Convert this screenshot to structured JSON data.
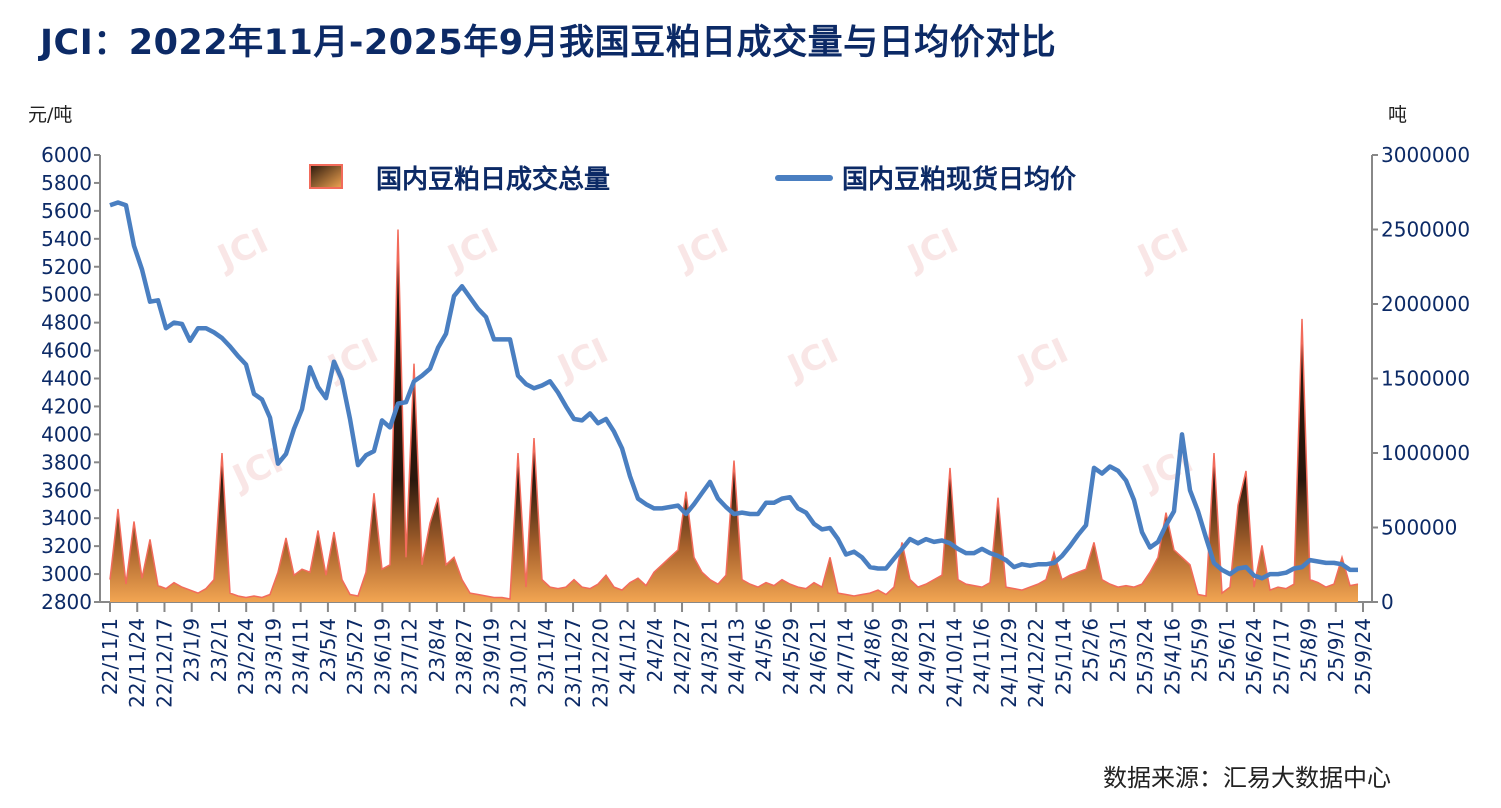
{
  "title": "JCI：2022年11月-2025年9月我国豆粕日成交量与日均价对比",
  "source": "数据来源：汇易大数据中心",
  "watermark": "JCI",
  "colors": {
    "price": "#4a7fc1",
    "volume_stroke": "#f26b5b",
    "volume_dark": "#2a170c",
    "volume_light": "#f2a552",
    "text": "#0c2a66"
  },
  "chart_data": {
    "type": "area+line",
    "title": "JCI：2022年11月-2025年9月我国豆粕日成交量与日均价对比",
    "y_left": {
      "label": "元/吨",
      "range": [
        2800,
        6000
      ],
      "ticks": [
        "6000",
        "5800",
        "5600",
        "5400",
        "5200",
        "5000",
        "4800",
        "4600",
        "4400",
        "4200",
        "4000",
        "3800",
        "3600",
        "3400",
        "3200",
        "3000",
        "2800"
      ]
    },
    "y_right": {
      "label": "吨",
      "range": [
        0,
        3000000
      ],
      "ticks": [
        "3000000",
        "2500000",
        "2000000",
        "1500000",
        "1000000",
        "500000",
        "0"
      ]
    },
    "x_ticks": [
      "22/11/1",
      "22/11/24",
      "22/12/17",
      "23/1/9",
      "23/2/1",
      "23/2/24",
      "23/3/19",
      "23/4/11",
      "23/5/4",
      "23/5/27",
      "23/6/19",
      "23/7/12",
      "23/8/4",
      "23/8/27",
      "23/9/19",
      "23/10/12",
      "23/11/4",
      "23/11/27",
      "23/12/20",
      "24/1/12",
      "24/2/4",
      "24/2/27",
      "24/3/21",
      "24/4/13",
      "24/5/6",
      "24/5/29",
      "24/6/21",
      "24/7/14",
      "24/8/6",
      "24/8/29",
      "24/9/21",
      "24/10/14",
      "24/11/6",
      "24/11/29",
      "24/12/22",
      "25/1/14",
      "25/2/6",
      "25/3/1",
      "25/3/24",
      "25/4/16",
      "25/5/9",
      "25/6/1",
      "25/6/24",
      "25/7/17",
      "25/8/9",
      "25/9/1",
      "25/9/24"
    ],
    "legend_position": "top",
    "series": [
      {
        "name": "国内豆粕日成交总量",
        "axis": "right",
        "kind": "area",
        "values": [
          150000,
          624000,
          120000,
          540000,
          160000,
          420000,
          110000,
          90000,
          130000,
          100000,
          80000,
          60000,
          90000,
          150000,
          1000000,
          60000,
          40000,
          30000,
          40000,
          30000,
          50000,
          200000,
          430000,
          180000,
          220000,
          200000,
          480000,
          180000,
          470000,
          150000,
          50000,
          40000,
          200000,
          730000,
          220000,
          250000,
          2500000,
          300000,
          1600000,
          250000,
          530000,
          700000,
          250000,
          300000,
          150000,
          60000,
          50000,
          40000,
          30000,
          30000,
          20000,
          1000000,
          100000,
          1100000,
          150000,
          100000,
          90000,
          100000,
          150000,
          100000,
          90000,
          120000,
          180000,
          100000,
          80000,
          130000,
          160000,
          110000,
          200000,
          250000,
          300000,
          350000,
          740000,
          300000,
          200000,
          150000,
          120000,
          180000,
          950000,
          150000,
          120000,
          100000,
          130000,
          110000,
          150000,
          120000,
          100000,
          90000,
          130000,
          100000,
          300000,
          60000,
          50000,
          40000,
          50000,
          60000,
          80000,
          50000,
          100000,
          400000,
          150000,
          100000,
          120000,
          150000,
          180000,
          900000,
          150000,
          120000,
          110000,
          100000,
          130000,
          700000,
          100000,
          90000,
          80000,
          100000,
          120000,
          150000,
          330000,
          150000,
          180000,
          200000,
          220000,
          400000,
          150000,
          120000,
          100000,
          110000,
          100000,
          120000,
          200000,
          300000,
          600000,
          350000,
          300000,
          250000,
          50000,
          40000,
          1000000,
          60000,
          100000,
          650000,
          880000,
          100000,
          380000,
          80000,
          100000,
          90000,
          120000,
          1900000,
          150000,
          130000,
          100000,
          120000,
          300000,
          110000,
          120000
        ]
      },
      {
        "name": "国内豆粕现货日均价",
        "axis": "left",
        "kind": "line",
        "values": [
          5640,
          5660,
          5640,
          5350,
          5180,
          4950,
          4960,
          4760,
          4800,
          4790,
          4670,
          4760,
          4760,
          4730,
          4690,
          4630,
          4560,
          4500,
          4290,
          4250,
          4120,
          3790,
          3860,
          4040,
          4180,
          4480,
          4340,
          4260,
          4520,
          4390,
          4110,
          3780,
          3850,
          3880,
          4100,
          4050,
          4220,
          4230,
          4380,
          4420,
          4470,
          4620,
          4720,
          4990,
          5060,
          4980,
          4900,
          4840,
          4680,
          4680,
          4680,
          4420,
          4360,
          4330,
          4350,
          4380,
          4300,
          4200,
          4110,
          4100,
          4150,
          4080,
          4110,
          4020,
          3900,
          3700,
          3540,
          3500,
          3470,
          3470,
          3480,
          3490,
          3430,
          3500,
          3580,
          3660,
          3540,
          3480,
          3430,
          3440,
          3430,
          3430,
          3510,
          3510,
          3540,
          3550,
          3470,
          3440,
          3360,
          3320,
          3330,
          3250,
          3140,
          3160,
          3120,
          3050,
          3040,
          3040,
          3110,
          3180,
          3250,
          3220,
          3250,
          3230,
          3240,
          3220,
          3180,
          3150,
          3150,
          3180,
          3150,
          3130,
          3100,
          3050,
          3070,
          3060,
          3070,
          3070,
          3080,
          3130,
          3200,
          3280,
          3350,
          3760,
          3720,
          3770,
          3740,
          3670,
          3530,
          3300,
          3190,
          3230,
          3350,
          3450,
          4000,
          3600,
          3450,
          3260,
          3080,
          3030,
          3000,
          3040,
          3050,
          2990,
          2970,
          3000,
          3000,
          3010,
          3040,
          3050,
          3100,
          3090,
          3080,
          3080,
          3070,
          3030,
          3030
        ]
      }
    ]
  }
}
